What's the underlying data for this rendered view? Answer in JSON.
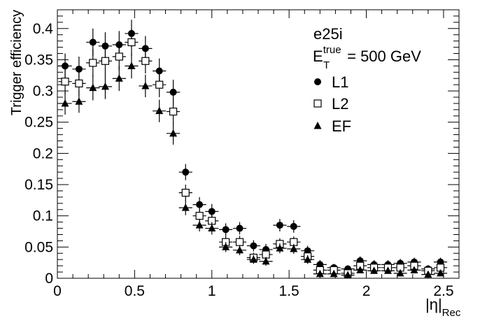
{
  "chart_data": {
    "type": "scatter",
    "xlabel": "|η|",
    "xlabel_sub": "Rec",
    "ylabel": "Trigger efficiency",
    "xlim": [
      0,
      2.6
    ],
    "ylim": [
      0,
      0.43
    ],
    "x_ticks": [
      0,
      0.5,
      1,
      1.5,
      2,
      2.5
    ],
    "x_tick_labels": [
      "0",
      "0.5",
      "1",
      "1.5",
      "2",
      "2.5"
    ],
    "y_ticks": [
      0,
      0.05,
      0.1,
      0.15,
      0.2,
      0.25,
      0.3,
      0.35,
      0.4
    ],
    "y_tick_labels": [
      "0",
      "0.05",
      "0.1",
      "0.15",
      "0.2",
      "0.25",
      "0.3",
      "0.35",
      "0.4"
    ],
    "grid": false,
    "legend_position": "top-right",
    "annotation": {
      "line1": "e25i",
      "line2_main": "E",
      "line2_sup": "true",
      "line2_sub": "T",
      "line2_rest": " = 500 GeV"
    },
    "x": [
      0.05,
      0.14,
      0.23,
      0.31,
      0.4,
      0.48,
      0.57,
      0.66,
      0.75,
      0.83,
      0.92,
      1.0,
      1.09,
      1.18,
      1.27,
      1.35,
      1.44,
      1.53,
      1.62,
      1.7,
      1.79,
      1.88,
      1.96,
      2.05,
      2.14,
      2.22,
      2.31,
      2.4,
      2.48
    ],
    "series": [
      {
        "name": "L1",
        "marker": "filled-circle",
        "values": [
          0.34,
          0.335,
          0.378,
          0.372,
          0.374,
          0.392,
          0.368,
          0.332,
          0.298,
          0.17,
          0.118,
          0.107,
          0.078,
          0.08,
          0.052,
          0.046,
          0.085,
          0.083,
          0.044,
          0.022,
          0.017,
          0.015,
          0.028,
          0.022,
          0.022,
          0.024,
          0.026,
          0.015,
          0.026
        ],
        "yerr": [
          0.02,
          0.02,
          0.022,
          0.022,
          0.022,
          0.022,
          0.02,
          0.02,
          0.02,
          0.013,
          0.012,
          0.012,
          0.01,
          0.01,
          0.009,
          0.009,
          0.01,
          0.01,
          0.008,
          0.007,
          0.006,
          0.006,
          0.007,
          0.007,
          0.007,
          0.007,
          0.007,
          0.006,
          0.007
        ]
      },
      {
        "name": "L2",
        "marker": "open-square",
        "values": [
          0.315,
          0.312,
          0.345,
          0.348,
          0.355,
          0.378,
          0.348,
          0.31,
          0.267,
          0.137,
          0.1,
          0.092,
          0.058,
          0.058,
          0.033,
          0.038,
          0.055,
          0.058,
          0.035,
          0.013,
          0.013,
          0.008,
          0.02,
          0.017,
          0.017,
          0.017,
          0.02,
          0.012,
          0.017
        ],
        "yerr": [
          0.02,
          0.02,
          0.022,
          0.022,
          0.022,
          0.022,
          0.02,
          0.02,
          0.02,
          0.013,
          0.012,
          0.012,
          0.01,
          0.01,
          0.008,
          0.008,
          0.009,
          0.009,
          0.008,
          0.006,
          0.006,
          0.005,
          0.007,
          0.006,
          0.006,
          0.006,
          0.007,
          0.005,
          0.006
        ]
      },
      {
        "name": "EF",
        "marker": "filled-triangle",
        "values": [
          0.28,
          0.283,
          0.305,
          0.307,
          0.32,
          0.34,
          0.308,
          0.268,
          0.232,
          0.113,
          0.085,
          0.08,
          0.05,
          0.045,
          0.03,
          0.027,
          0.048,
          0.047,
          0.03,
          0.007,
          0.007,
          0.005,
          0.013,
          0.012,
          0.012,
          0.008,
          0.013,
          0.006,
          0.008
        ],
        "yerr": [
          0.018,
          0.018,
          0.02,
          0.02,
          0.02,
          0.02,
          0.018,
          0.018,
          0.018,
          0.012,
          0.01,
          0.01,
          0.008,
          0.008,
          0.007,
          0.007,
          0.008,
          0.008,
          0.007,
          0.004,
          0.004,
          0.004,
          0.005,
          0.005,
          0.005,
          0.004,
          0.005,
          0.004,
          0.004
        ]
      }
    ],
    "bin_half_width": 0.0435
  }
}
